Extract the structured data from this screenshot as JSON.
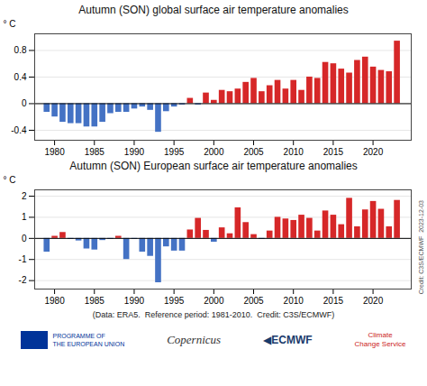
{
  "chart_data": [
    {
      "type": "bar",
      "title": "Autumn (SON) global surface air temperature anomalies",
      "ylabel": "° C",
      "x": [
        1979,
        1980,
        1981,
        1982,
        1983,
        1984,
        1985,
        1986,
        1987,
        1988,
        1989,
        1990,
        1991,
        1992,
        1993,
        1994,
        1995,
        1996,
        1997,
        1998,
        1999,
        2000,
        2001,
        2002,
        2003,
        2004,
        2005,
        2006,
        2007,
        2008,
        2009,
        2010,
        2011,
        2012,
        2013,
        2014,
        2015,
        2016,
        2017,
        2018,
        2019,
        2020,
        2021,
        2022,
        2023
      ],
      "values": [
        -0.13,
        -0.2,
        -0.28,
        -0.3,
        -0.3,
        -0.35,
        -0.35,
        -0.28,
        -0.15,
        -0.13,
        -0.13,
        -0.08,
        -0.05,
        -0.1,
        -0.43,
        -0.12,
        -0.05,
        -0.02,
        0.08,
        -0.02,
        0.16,
        0.05,
        0.2,
        0.18,
        0.22,
        0.32,
        0.38,
        0.18,
        0.27,
        0.35,
        0.22,
        0.35,
        0.2,
        0.4,
        0.38,
        0.62,
        0.6,
        0.52,
        0.46,
        0.65,
        0.7,
        0.55,
        0.5,
        0.48,
        0.94
      ],
      "colors": [
        "#4472c4",
        "#4472c4",
        "#4472c4",
        "#4472c4",
        "#4472c4",
        "#4472c4",
        "#4472c4",
        "#4472c4",
        "#4472c4",
        "#4472c4",
        "#4472c4",
        "#4472c4",
        "#4472c4",
        "#4472c4",
        "#4472c4",
        "#4472c4",
        "#4472c4",
        "#4472c4",
        "#d62728",
        "#4472c4",
        "#d62728",
        "#d62728",
        "#d62728",
        "#d62728",
        "#d62728",
        "#d62728",
        "#d62728",
        "#d62728",
        "#d62728",
        "#d62728",
        "#d62728",
        "#d62728",
        "#d62728",
        "#d62728",
        "#d62728",
        "#d62728",
        "#d62728",
        "#d62728",
        "#d62728",
        "#d62728",
        "#d62728",
        "#d62728",
        "#d62728",
        "#d62728",
        "#d62728"
      ],
      "xlim": [
        1977.5,
        2024.8
      ],
      "xticks": [
        1980,
        1985,
        1990,
        1995,
        2000,
        2005,
        2010,
        2015,
        2020
      ],
      "ylim": [
        -0.55,
        1.05
      ],
      "yticks": [
        -0.4,
        0,
        0.4,
        0.8
      ],
      "grid": true
    },
    {
      "type": "bar",
      "title": "Autumn (SON) European surface air temperature anomalies",
      "ylabel": "° C",
      "x": [
        1979,
        1980,
        1981,
        1982,
        1983,
        1984,
        1985,
        1986,
        1987,
        1988,
        1989,
        1990,
        1991,
        1992,
        1993,
        1994,
        1995,
        1996,
        1997,
        1998,
        1999,
        2000,
        2001,
        2002,
        2003,
        2004,
        2005,
        2006,
        2007,
        2008,
        2009,
        2010,
        2011,
        2012,
        2013,
        2014,
        2015,
        2016,
        2017,
        2018,
        2019,
        2020,
        2021,
        2022,
        2023
      ],
      "values": [
        -0.65,
        0.1,
        0.28,
        -0.05,
        -0.12,
        -0.5,
        -0.55,
        -0.1,
        -0.05,
        0.1,
        -1.0,
        -0.05,
        -0.65,
        -0.85,
        -2.1,
        -0.4,
        -0.6,
        -0.6,
        0.4,
        0.95,
        0.38,
        -0.18,
        0.5,
        0.22,
        1.45,
        0.75,
        0.18,
        -0.05,
        0.35,
        1.0,
        0.92,
        0.85,
        1.1,
        0.95,
        0.35,
        1.3,
        1.1,
        0.65,
        1.9,
        0.55,
        1.35,
        1.75,
        1.38,
        0.55,
        1.8
      ],
      "colors": [
        "#4472c4",
        "#d62728",
        "#d62728",
        "#4472c4",
        "#4472c4",
        "#4472c4",
        "#4472c4",
        "#4472c4",
        "#4472c4",
        "#d62728",
        "#4472c4",
        "#4472c4",
        "#4472c4",
        "#4472c4",
        "#4472c4",
        "#4472c4",
        "#4472c4",
        "#4472c4",
        "#d62728",
        "#d62728",
        "#d62728",
        "#4472c4",
        "#d62728",
        "#d62728",
        "#d62728",
        "#d62728",
        "#d62728",
        "#4472c4",
        "#d62728",
        "#d62728",
        "#d62728",
        "#d62728",
        "#d62728",
        "#d62728",
        "#d62728",
        "#d62728",
        "#d62728",
        "#d62728",
        "#d62728",
        "#d62728",
        "#d62728",
        "#d62728",
        "#d62728",
        "#d62728",
        "#d62728"
      ],
      "xlim": [
        1977.5,
        2024.8
      ],
      "xticks": [
        1980,
        1985,
        1990,
        1995,
        2000,
        2005,
        2010,
        2015,
        2020
      ],
      "ylim": [
        -2.4,
        2.3
      ],
      "yticks": [
        -2,
        -1,
        0,
        1,
        2
      ],
      "grid": true,
      "annotations": [
        "(Data: ERA5.  Reference period: 1981-2010.  Credit: C3S/ECMWF)",
        "Credit: C3S/ECMWF  2023-12-03",
        "PROGRAMME OF\nTHE EUROPEAN UNION",
        "Copernicus",
        "◀ECMWF",
        "Climate\nChange Service"
      ]
    }
  ]
}
